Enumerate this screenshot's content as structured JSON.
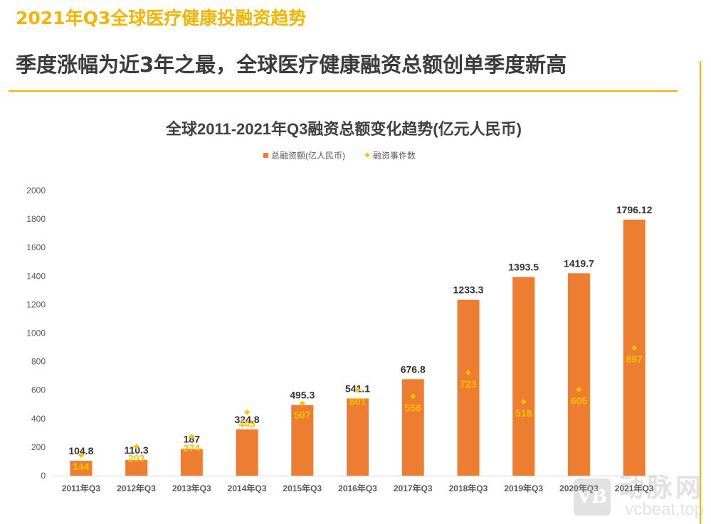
{
  "page": {
    "kicker": "2021年Q3全球医疗健康投融资趋势",
    "headline": "季度涨幅为近3年之最，全球医疗健康融资总额创单季度新高"
  },
  "colors": {
    "accent": "#f5b400",
    "bar": "#ed7d31",
    "marker": "#ffc000",
    "bar_label": "#333333",
    "axis_text": "#595959"
  },
  "watermark": {
    "logo": "VB",
    "name": "动脉网",
    "url": "vcbeat.top"
  },
  "chart_data": {
    "type": "bar",
    "title": "全球2011-2021年Q3融资总额变化趋势(亿元人民币)",
    "categories": [
      "2011年Q3",
      "2012年Q3",
      "2013年Q3",
      "2014年Q3",
      "2015年Q3",
      "2016年Q3",
      "2017年Q3",
      "2018年Q3",
      "2019年Q3",
      "2020年Q3",
      "2021年Q3"
    ],
    "series": [
      {
        "name": "总融资额(亿人民币)",
        "type": "bar",
        "values": [
          104.8,
          110.3,
          187,
          324.8,
          495.3,
          541.1,
          676.8,
          1233.3,
          1393.5,
          1419.7,
          1796.12
        ],
        "labels": [
          "104.8",
          "110.3",
          "187",
          "324.8",
          "495.3",
          "541.1",
          "676.8",
          "1233.3",
          "1393.5",
          "1419.7",
          "1796.12"
        ]
      },
      {
        "name": "融资事件数",
        "type": "scatter",
        "values": [
          144,
          203,
          274,
          445,
          507,
          601,
          556,
          723,
          518,
          605,
          897
        ],
        "labels": [
          "144",
          "203",
          "274",
          "445",
          "507",
          "601",
          "556",
          "723",
          "518",
          "605",
          "897"
        ]
      }
    ],
    "ylim": [
      0,
      2000
    ],
    "yticks": [
      "0",
      "200",
      "400",
      "600",
      "800",
      "1000",
      "1200",
      "1400",
      "1600",
      "1800",
      "2000"
    ],
    "legend_position": "top-center",
    "grid": false
  }
}
